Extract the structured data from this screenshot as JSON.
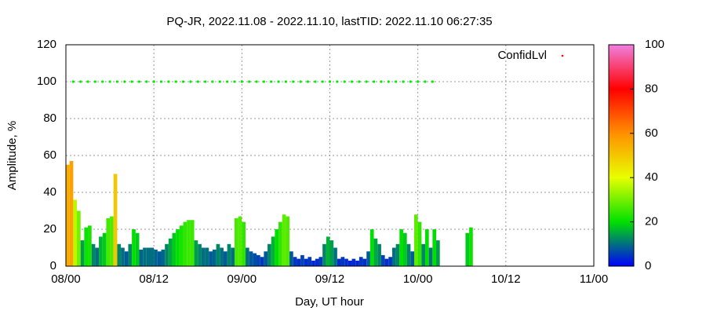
{
  "chart_data": {
    "type": "bar",
    "title": "PQ-JR, 2022.11.08 - 2022.11.10, lastTID: 2022.11.10 06:27:35",
    "x_label": "Day, UT hour",
    "y_label": "Amplitude, %",
    "xlim": [
      0,
      72
    ],
    "xticks": [
      {
        "value": 0,
        "label": "08/00"
      },
      {
        "value": 12,
        "label": "08/12"
      },
      {
        "value": 24,
        "label": "09/00"
      },
      {
        "value": 36,
        "label": "09/12"
      },
      {
        "value": 48,
        "label": "10/00"
      },
      {
        "value": 60,
        "label": "10/12"
      },
      {
        "value": 72,
        "label": "11/00"
      }
    ],
    "ylim": [
      0,
      120
    ],
    "yticks": [
      0,
      20,
      40,
      60,
      80,
      100,
      120
    ],
    "cblim": [
      0,
      100
    ],
    "cbticks": [
      0,
      20,
      40,
      60,
      80,
      100
    ],
    "cb_colors": [
      "#0000ff",
      "#00e000",
      "#e8ff00",
      "#ff9000",
      "#ff0000",
      "#f080e0"
    ],
    "grid": true,
    "legend": "top-right",
    "series": [
      {
        "x": [
          0,
          0.5,
          1,
          1.5,
          2,
          2.5,
          3,
          3.5,
          4,
          4.5,
          5,
          5.5,
          6,
          6.5,
          7,
          7.5,
          8,
          8.5,
          9,
          9.5,
          10,
          10.5,
          11,
          11.5,
          12,
          12.5,
          13,
          13.5,
          14,
          14.5,
          15,
          15.5,
          16,
          16.5,
          17,
          17.5,
          18,
          18.5,
          19,
          19.5,
          20,
          20.5,
          21,
          21.5,
          22,
          22.5,
          23,
          23.5,
          24,
          24.5,
          25,
          25.5,
          26,
          26.5,
          27,
          27.5,
          28,
          28.5,
          29,
          29.5,
          30,
          30.5,
          31,
          31.5,
          32,
          32.5,
          33,
          33.5,
          34,
          34.5,
          35,
          35.5,
          36,
          36.5,
          37,
          37.5,
          38,
          38.5,
          39,
          39.5,
          40,
          40.5,
          41,
          41.5,
          42,
          42.5,
          43,
          43.5,
          44,
          44.5,
          45,
          45.5,
          46,
          46.5,
          47,
          47.5,
          48,
          48.5,
          49,
          49.5,
          50,
          50.5,
          54.5,
          55
        ],
        "values": [
          55,
          57,
          36,
          30,
          14,
          21,
          22,
          12,
          10,
          16,
          18,
          26,
          27,
          50,
          12,
          10,
          8,
          12,
          20,
          18,
          9,
          10,
          10,
          10,
          9,
          8,
          9,
          12,
          15,
          18,
          20,
          22,
          24,
          25,
          25,
          14,
          12,
          10,
          10,
          8,
          9,
          12,
          10,
          8,
          12,
          10,
          26,
          27,
          24,
          10,
          8,
          7,
          6,
          5,
          8,
          12,
          16,
          20,
          24,
          28,
          27,
          8,
          5,
          4,
          6,
          4,
          5,
          3,
          4,
          5,
          12,
          16,
          14,
          10,
          4,
          5,
          4,
          3,
          4,
          3,
          5,
          4,
          8,
          20,
          15,
          12,
          6,
          4,
          5,
          10,
          12,
          20,
          18,
          12,
          8,
          28,
          24,
          12,
          20,
          10,
          20,
          14,
          18,
          21
        ]
      },
      {
        "name": "ConfidLvl",
        "type": "scatter",
        "color": "#00ee00",
        "key_color": "#ff0000",
        "x": [
          1,
          2,
          3,
          4,
          5,
          6,
          7,
          8,
          9,
          10,
          11,
          12,
          13,
          14,
          15,
          16,
          17,
          18,
          19,
          20,
          21,
          22,
          23,
          24,
          25,
          26,
          27,
          28,
          29,
          30,
          31,
          32,
          33,
          34,
          35,
          36,
          37,
          38,
          39,
          40,
          41,
          42,
          43,
          44,
          45,
          46,
          47,
          48,
          49,
          50
        ],
        "values": [
          100,
          100,
          100,
          100,
          100,
          100,
          100,
          100,
          100,
          100,
          100,
          100,
          100,
          100,
          100,
          100,
          100,
          100,
          100,
          100,
          100,
          100,
          100,
          100,
          100,
          100,
          100,
          100,
          100,
          100,
          100,
          100,
          100,
          100,
          100,
          100,
          100,
          100,
          100,
          100,
          100,
          100,
          100,
          100,
          100,
          100,
          100,
          100,
          100,
          100
        ]
      }
    ]
  }
}
